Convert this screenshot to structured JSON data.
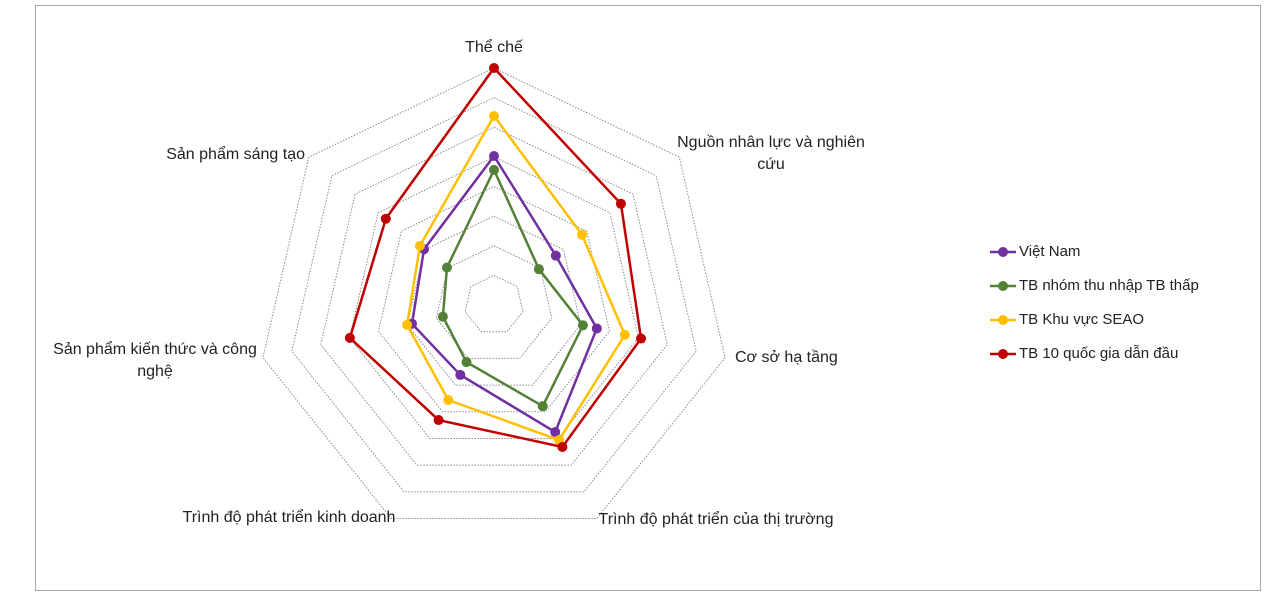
{
  "chart_data": {
    "type": "radar",
    "categories": [
      "Thể chế",
      "Nguồn nhân lực  và nghiên cứu",
      "Cơ sở hạ tầng",
      "Trình độ phát triển của thị trường",
      "Trình độ phát triển kinh doanh",
      "Sản phẩm kiến thức và công nghệ",
      "Sản phẩm sáng tạo"
    ],
    "series": [
      {
        "name": "Việt Nam",
        "color": "#7030a0",
        "values": [
          50.3,
          26.7,
          35.6,
          47.6,
          26.2,
          28.4,
          30.2
        ]
      },
      {
        "name": "TB nhóm thu nhập TB thấp",
        "color": "#538135",
        "values": [
          45.6,
          19.4,
          30.8,
          37.9,
          21.4,
          17.7,
          20.3
        ]
      },
      {
        "name": "TB Khu vực SEAO",
        "color": "#ffc000",
        "values": [
          63.8,
          38,
          45.3,
          50.6,
          35.6,
          30.1,
          32
        ]
      },
      {
        "name": "TB 10 quốc gia dẫn đầu",
        "color": "#c00000",
        "values": [
          80,
          54.8,
          50.9,
          53.2,
          43.1,
          49.9,
          46.7
        ]
      }
    ],
    "ylim": [
      0,
      80
    ],
    "yticks": [
      10,
      20,
      30,
      40,
      50,
      60,
      70,
      80
    ],
    "grid": true,
    "legend": "right"
  }
}
